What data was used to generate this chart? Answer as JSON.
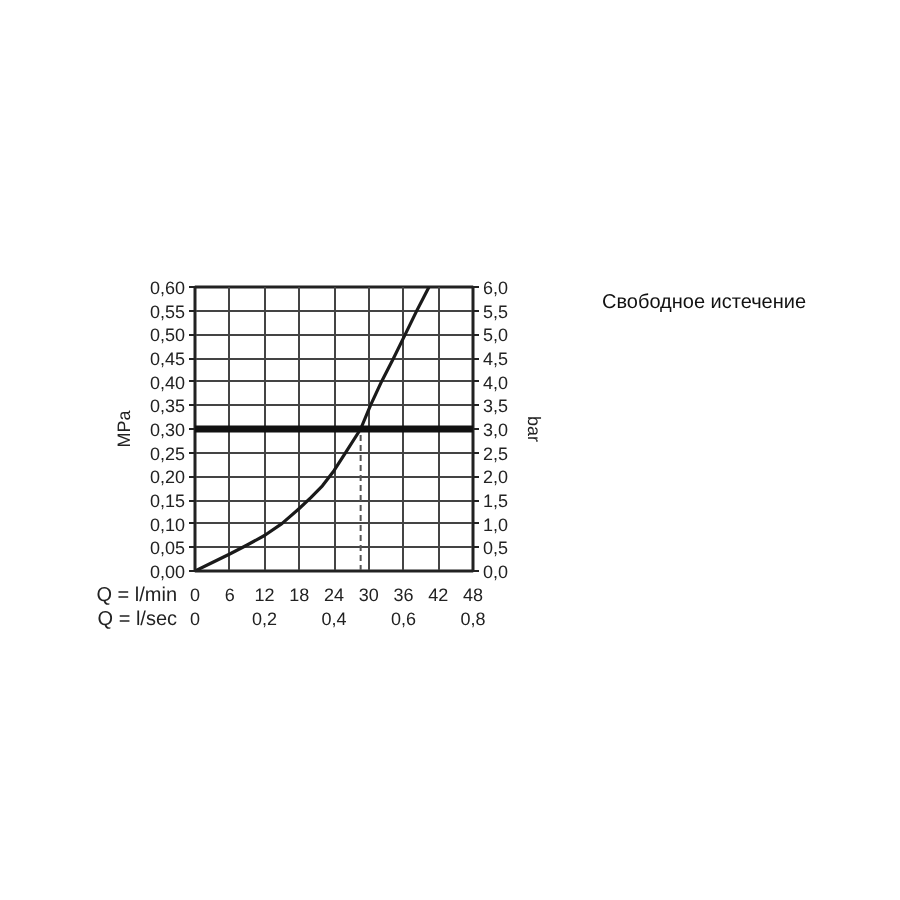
{
  "chart_data": {
    "type": "line",
    "title": "Свободное истечение",
    "xlabel": "Q = l/min",
    "x2label": "Q = l/sec",
    "ylabel": "MPa",
    "y2label": "bar",
    "xlim": [
      0,
      48
    ],
    "xticks": [
      0,
      6,
      12,
      18,
      24,
      30,
      36,
      42,
      48
    ],
    "x2lim": [
      0,
      0.8
    ],
    "x2ticks": [
      0,
      {
        "value": 0.2,
        "label": "0,2"
      },
      {
        "value": 0.4,
        "label": "0,4"
      },
      {
        "value": 0.6,
        "label": "0,6"
      },
      {
        "value": 0.8,
        "label": "0,8"
      }
    ],
    "ylim": [
      0,
      0.6
    ],
    "yticks": [
      {
        "value": 0,
        "label": "0,00"
      },
      {
        "value": 0.05,
        "label": "0,05"
      },
      {
        "value": 0.1,
        "label": "0,10"
      },
      {
        "value": 0.15,
        "label": "0,15"
      },
      {
        "value": 0.2,
        "label": "0,20"
      },
      {
        "value": 0.25,
        "label": "0,25"
      },
      {
        "value": 0.3,
        "label": "0,30"
      },
      {
        "value": 0.35,
        "label": "0,35"
      },
      {
        "value": 0.4,
        "label": "0,40"
      },
      {
        "value": 0.45,
        "label": "0,45"
      },
      {
        "value": 0.5,
        "label": "0,50"
      },
      {
        "value": 0.55,
        "label": "0,55"
      },
      {
        "value": 0.6,
        "label": "0,60"
      }
    ],
    "y2lim": [
      0,
      6
    ],
    "y2ticks": [
      {
        "value": 0,
        "label": "0,0"
      },
      {
        "value": 0.5,
        "label": "0,5"
      },
      {
        "value": 1,
        "label": "1,0"
      },
      {
        "value": 1.5,
        "label": "1,5"
      },
      {
        "value": 2,
        "label": "2,0"
      },
      {
        "value": 2.5,
        "label": "2,5"
      },
      {
        "value": 3,
        "label": "3,0"
      },
      {
        "value": 3.5,
        "label": "3,5"
      },
      {
        "value": 4,
        "label": "4,0"
      },
      {
        "value": 4.5,
        "label": "4,5"
      },
      {
        "value": 5,
        "label": "5,0"
      },
      {
        "value": 5.5,
        "label": "5,5"
      },
      {
        "value": 6,
        "label": "6,0"
      }
    ],
    "grid": true,
    "series": [
      {
        "color": "#1a1a1a",
        "x": [
          0,
          3,
          6,
          9,
          12,
          15,
          18,
          20,
          22,
          24,
          26,
          28.6,
          30.3,
          32.2,
          34.3,
          36.3,
          38.3,
          40.4
        ],
        "values": [
          0,
          0.018,
          0.036,
          0.055,
          0.075,
          0.1,
          0.132,
          0.155,
          0.18,
          0.212,
          0.25,
          0.3,
          0.35,
          0.4,
          0.45,
          0.5,
          0.55,
          0.6
        ]
      },
      {
        "type": "line",
        "color": "#555555",
        "line_style": "dashed",
        "x": [
          28.6,
          28.6
        ],
        "values": [
          0,
          0.3
        ]
      }
    ],
    "ref_lines": [
      {
        "axis": "y",
        "value": 0.3,
        "color": "#111111"
      }
    ]
  }
}
